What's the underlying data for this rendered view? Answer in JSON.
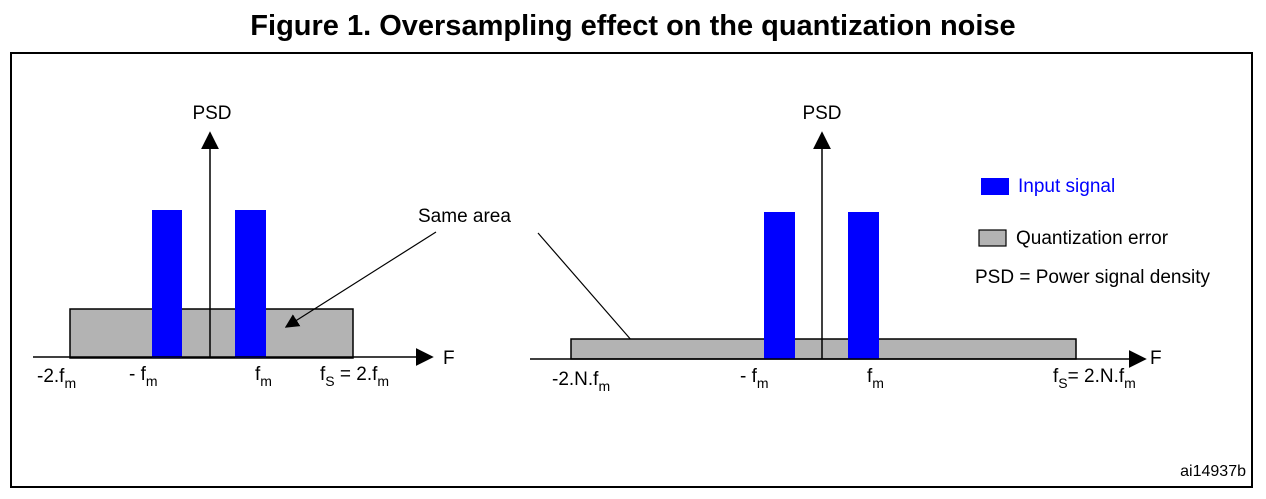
{
  "title": "Figure 1. Oversampling effect on the quantization noise",
  "colors": {
    "input_signal": "#0000ff",
    "quantization_error": "#b3b3b3",
    "legend_text_blue": "#0000ff"
  },
  "left_plot": {
    "y_axis_label": "PSD",
    "x_axis_label": "F",
    "tick_labels": [
      {
        "main": "-2.f",
        "sub": "m",
        "after": ""
      },
      {
        "main": "- f",
        "sub": "m",
        "after": ""
      },
      {
        "main": "f",
        "sub": "m",
        "after": ""
      },
      {
        "main": "f",
        "sub": "S",
        "after": " = 2.f",
        "sub2": "m"
      }
    ]
  },
  "right_plot": {
    "y_axis_label": "PSD",
    "x_axis_label": "F",
    "tick_labels": [
      {
        "main": "-2.N.f",
        "sub": "m",
        "after": ""
      },
      {
        "main": "- f",
        "sub": "m",
        "after": ""
      },
      {
        "main": "f",
        "sub": "m",
        "after": ""
      },
      {
        "main": "f",
        "sub": "S",
        "after": "= 2.N.f",
        "sub2": "m"
      }
    ]
  },
  "annotation": "Same area",
  "legend": {
    "input_signal": "Input signal",
    "quantization_error": "Quantization error",
    "psd_definition": "PSD = Power signal density"
  },
  "figure_id": "ai14937b"
}
